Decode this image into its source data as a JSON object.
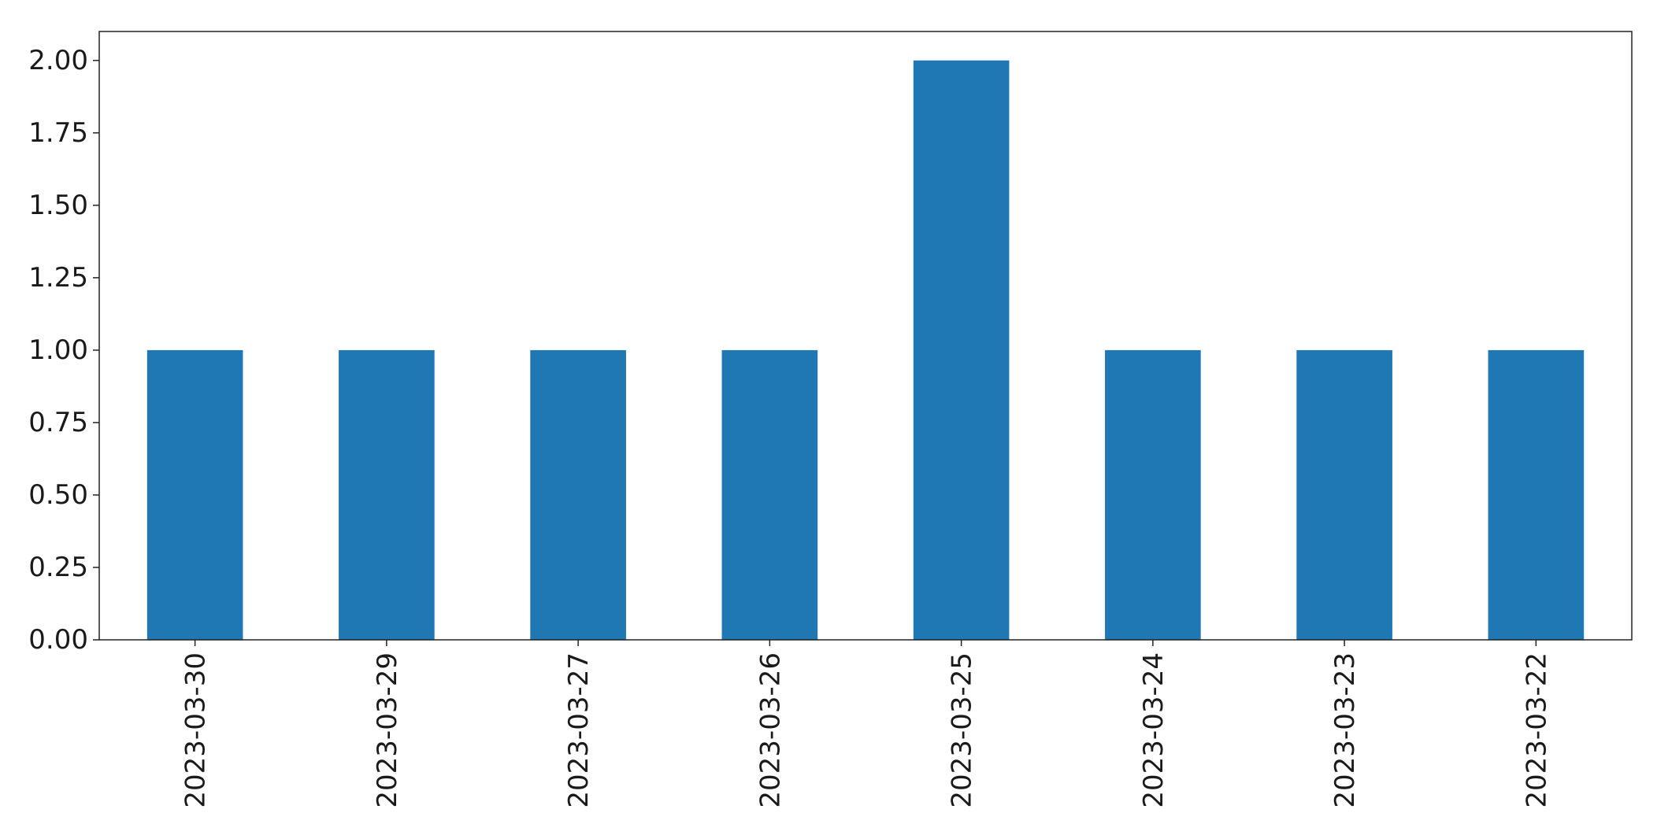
{
  "chart_data": {
    "type": "bar",
    "title": "",
    "xlabel": "",
    "ylabel": "",
    "categories": [
      "2023-03-30",
      "2023-03-29",
      "2023-03-27",
      "2023-03-26",
      "2023-03-25",
      "2023-03-24",
      "2023-03-23",
      "2023-03-22"
    ],
    "values": [
      1,
      1,
      1,
      1,
      2,
      1,
      1,
      1
    ],
    "ylim": [
      0,
      2.1
    ],
    "yticks": [
      "0.00",
      "0.25",
      "0.50",
      "0.75",
      "1.00",
      "1.25",
      "1.50",
      "1.75",
      "2.00"
    ],
    "grid": false,
    "legend": "none",
    "bar_color": "#1f77b4"
  }
}
